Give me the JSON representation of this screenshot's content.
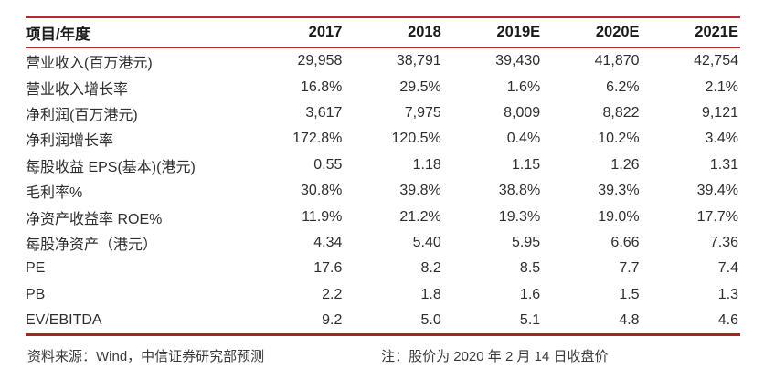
{
  "table": {
    "accent_color": "#b52a2a",
    "header": [
      "项目/年度",
      "2017",
      "2018",
      "2019E",
      "2020E",
      "2021E"
    ],
    "rows": [
      {
        "label": "营业收入(百万港元)",
        "values": [
          "29,958",
          "38,791",
          "39,430",
          "41,870",
          "42,754"
        ]
      },
      {
        "label": "营业收入增长率",
        "values": [
          "16.8%",
          "29.5%",
          "1.6%",
          "6.2%",
          "2.1%"
        ]
      },
      {
        "label": "净利润(百万港元)",
        "values": [
          "3,617",
          "7,975",
          "8,009",
          "8,822",
          "9,121"
        ]
      },
      {
        "label": "净利润增长率",
        "values": [
          "172.8%",
          "120.5%",
          "0.4%",
          "10.2%",
          "3.4%"
        ]
      },
      {
        "label": "每股收益 EPS(基本)(港元)",
        "values": [
          "0.55",
          "1.18",
          "1.15",
          "1.26",
          "1.31"
        ]
      },
      {
        "label": "毛利率%",
        "values": [
          "30.8%",
          "39.8%",
          "38.8%",
          "39.3%",
          "39.4%"
        ]
      },
      {
        "label": "净资产收益率 ROE%",
        "values": [
          "11.9%",
          "21.2%",
          "19.3%",
          "19.0%",
          "17.7%"
        ]
      },
      {
        "label": "每股净资产（港元）",
        "values": [
          "4.34",
          "5.40",
          "5.95",
          "6.66",
          "7.36"
        ]
      },
      {
        "label": "PE",
        "values": [
          "17.6",
          "8.2",
          "8.5",
          "7.7",
          "7.4"
        ]
      },
      {
        "label": "PB",
        "values": [
          "2.2",
          "1.8",
          "1.6",
          "1.5",
          "1.3"
        ]
      },
      {
        "label": "EV/EBITDA",
        "values": [
          "9.2",
          "5.0",
          "5.1",
          "4.8",
          "4.6"
        ]
      }
    ]
  },
  "footer": {
    "source": "资料来源：Wind，中信证券研究部预测",
    "note": "注：股价为 2020 年 2 月 14 日收盘价"
  }
}
